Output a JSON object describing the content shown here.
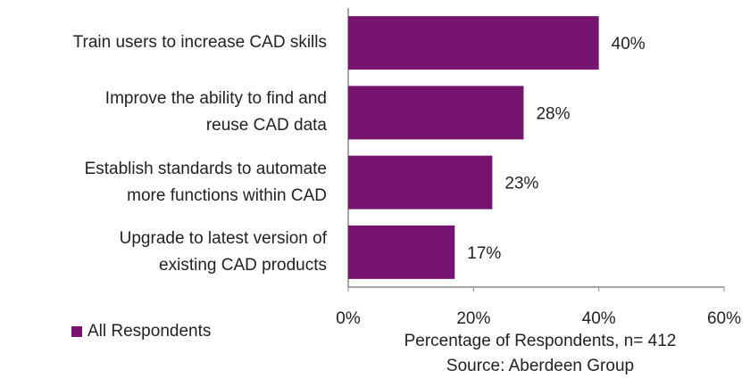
{
  "chart_data": {
    "type": "bar",
    "orientation": "horizontal",
    "categories": [
      "Train users to increase CAD skills",
      "Improve the ability to find and\nreuse CAD data",
      "Establish standards to automate\nmore functions within CAD",
      "Upgrade to latest version of\nexisting CAD products"
    ],
    "series": [
      {
        "name": "All Respondents",
        "color": "#761470",
        "values": [
          40,
          28,
          23,
          17
        ],
        "value_labels": [
          "40%",
          "28%",
          "23%",
          "17%"
        ]
      }
    ],
    "xlim": [
      0,
      60
    ],
    "xticks": [
      {
        "value": 0,
        "label": "0%"
      },
      {
        "value": 20,
        "label": "20%"
      },
      {
        "value": 40,
        "label": "40%"
      },
      {
        "value": 60,
        "label": "60%"
      }
    ],
    "xlabel": "Percentage of Respondents, n= 412",
    "source": "Source: Aberdeen Group",
    "legend": "bottom-left"
  }
}
